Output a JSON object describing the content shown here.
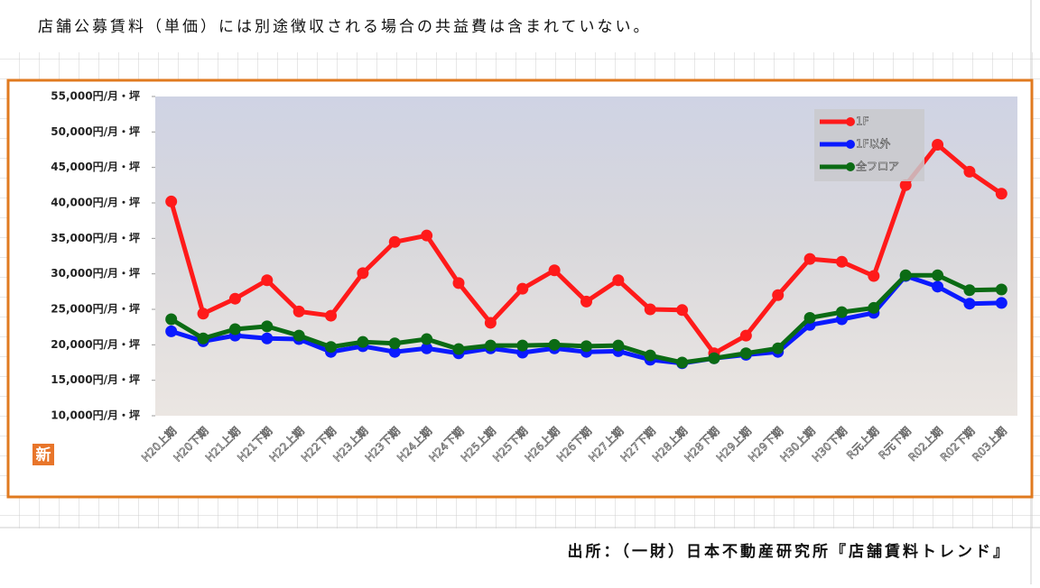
{
  "header": "店舗公募賃料（単価）には別途徴収される場合の共益費は含まれていない。",
  "source": "出所：（一財）日本不動産研究所『店舗賃料トレンド』",
  "logo": "新",
  "chart_data": {
    "type": "line",
    "categories": [
      "H20上期",
      "H20下期",
      "H21上期",
      "H21下期",
      "H22上期",
      "H22下期",
      "H23上期",
      "H23下期",
      "H24上期",
      "H24下期",
      "H25上期",
      "H25下期",
      "H26上期",
      "H26下期",
      "H27上期",
      "H27下期",
      "H28上期",
      "H28下期",
      "H29上期",
      "H29下期",
      "H30上期",
      "H30下期",
      "R元上期",
      "R元下期",
      "R02上期",
      "R02下期",
      "R03上期"
    ],
    "series": [
      {
        "name": "1F",
        "color": "#ff1a1a",
        "values": [
          40200,
          24400,
          26500,
          29100,
          24700,
          24100,
          30100,
          34500,
          35400,
          28700,
          23100,
          27900,
          30500,
          26100,
          29100,
          25000,
          24900,
          18800,
          21300,
          27000,
          32100,
          31700,
          29700,
          42500,
          48200,
          44400,
          41300
        ]
      },
      {
        "name": "1F以外",
        "color": "#0a1aff",
        "values": [
          21900,
          20500,
          21300,
          20900,
          20800,
          19000,
          19800,
          19000,
          19500,
          18800,
          19500,
          18900,
          19500,
          19000,
          19100,
          17900,
          17400,
          18100,
          18600,
          19000,
          22800,
          23600,
          24500,
          29700,
          28200,
          25800,
          25900
        ]
      },
      {
        "name": "全フロア",
        "color": "#0b6b14",
        "values": [
          23600,
          20900,
          22200,
          22600,
          21300,
          19700,
          20400,
          20200,
          20800,
          19400,
          19900,
          19900,
          20000,
          19800,
          19900,
          18500,
          17500,
          18100,
          18800,
          19500,
          23800,
          24600,
          25200,
          29800,
          29800,
          27700,
          27800
        ]
      }
    ],
    "ylim": [
      10000,
      55000
    ],
    "yticks": [
      {
        "value": 10000,
        "label": "10,000円/月・坪"
      },
      {
        "value": 15000,
        "label": "15,000円/月・坪"
      },
      {
        "value": 20000,
        "label": "20,000円/月・坪"
      },
      {
        "value": 25000,
        "label": "25,000円/月・坪"
      },
      {
        "value": 30000,
        "label": "30,000円/月・坪"
      },
      {
        "value": 35000,
        "label": "35,000円/月・坪"
      },
      {
        "value": 40000,
        "label": "40,000円/月・坪"
      },
      {
        "value": 45000,
        "label": "45,000円/月・坪"
      },
      {
        "value": 50000,
        "label": "50,000円/月・坪"
      },
      {
        "value": 55000,
        "label": "55,000円/月・坪"
      }
    ],
    "legend": "upper right"
  }
}
